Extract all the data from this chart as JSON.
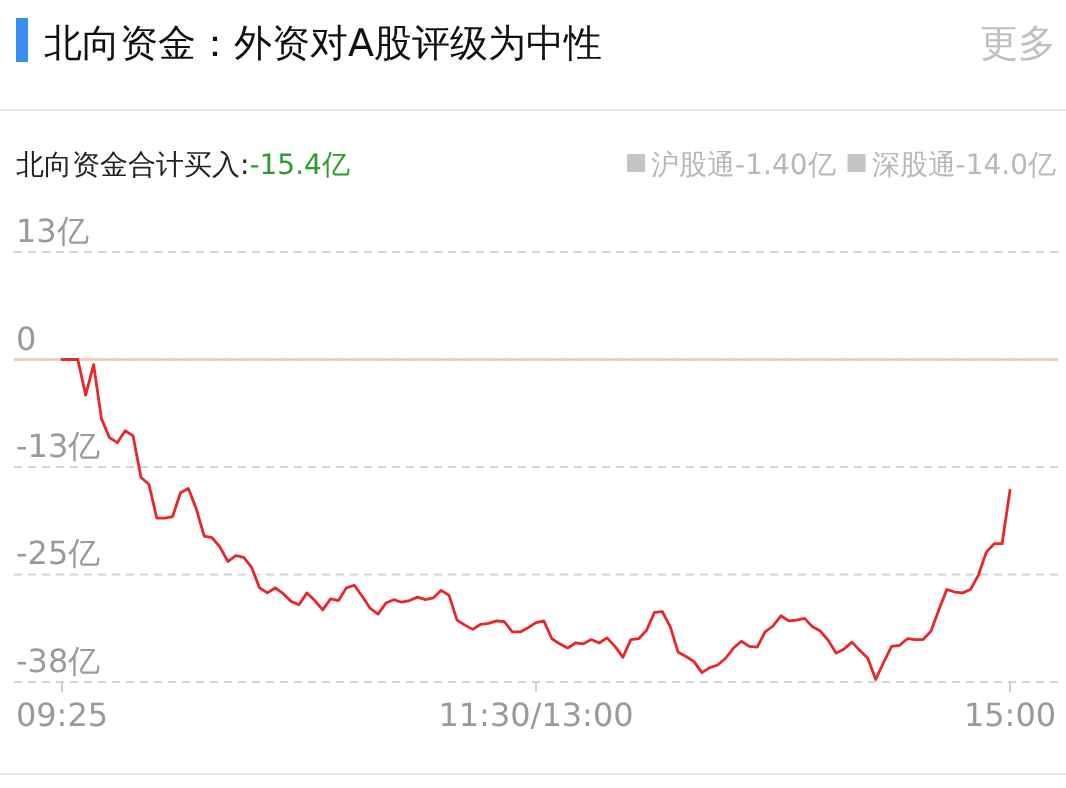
{
  "chart_data": {
    "type": "line",
    "title": "北向资金：外资对A股评级为中性",
    "annotations": [
      "北向资金合计买入:",
      "-15.4亿",
      "沪股通-1.40亿",
      "深股通-14.0亿",
      "更多"
    ],
    "categories": [
      "09:25",
      null,
      null,
      null,
      null,
      null,
      null,
      null,
      null,
      null,
      null,
      null,
      null,
      null,
      null,
      null,
      null,
      null,
      null,
      null,
      null,
      null,
      null,
      null,
      null,
      null,
      null,
      null,
      null,
      null,
      null,
      null,
      null,
      null,
      null,
      null,
      null,
      null,
      null,
      null,
      null,
      null,
      null,
      null,
      null,
      null,
      null,
      null,
      null,
      null,
      null,
      null,
      null,
      null,
      null,
      null,
      null,
      null,
      null,
      null,
      "11:30/13:00",
      null,
      null,
      null,
      null,
      null,
      null,
      null,
      null,
      null,
      null,
      null,
      null,
      null,
      null,
      null,
      null,
      null,
      null,
      null,
      null,
      null,
      null,
      null,
      null,
      null,
      null,
      null,
      null,
      null,
      null,
      null,
      null,
      null,
      null,
      null,
      null,
      null,
      null,
      null,
      null,
      null,
      null,
      null,
      null,
      null,
      null,
      null,
      null,
      null,
      null,
      null,
      null,
      null,
      null,
      null,
      null,
      null,
      null,
      null,
      "15:00"
    ],
    "series": [
      {
        "color": "#e8262b",
        "values": [
          0,
          0,
          0,
          -4.2,
          -0.6,
          -7.0,
          -9.2,
          -9.8,
          -8.4,
          -9.0,
          -13.9,
          -14.7,
          -18.7,
          -18.7,
          -18.5,
          -15.7,
          -15.2,
          -17.6,
          -20.8,
          -21.0,
          -22.1,
          -23.8,
          -23.1,
          -23.3,
          -24.5,
          -26.9,
          -27.5,
          -26.9,
          -27.6,
          -28.5,
          -28.9,
          -27.5,
          -28.4,
          -29.5,
          -28.2,
          -28.4,
          -26.9,
          -26.6,
          -27.9,
          -29.3,
          -30.0,
          -28.7,
          -28.3,
          -28.6,
          -28.4,
          -28.0,
          -28.3,
          -28.1,
          -27.2,
          -27.8,
          -30.7,
          -31.3,
          -31.8,
          -31.2,
          -31.1,
          -30.8,
          -30.9,
          -32.1,
          -32.1,
          -31.6,
          -31.0,
          -30.8,
          -32.9,
          -33.5,
          -34.0,
          -33.4,
          -33.5,
          -33.0,
          -33.4,
          -32.8,
          -33.8,
          -35.1,
          -33.0,
          -32.9,
          -31.9,
          -29.8,
          -29.7,
          -31.5,
          -34.5,
          -35.0,
          -35.6,
          -36.9,
          -36.3,
          -36.0,
          -35.2,
          -34.0,
          -33.2,
          -33.8,
          -33.9,
          -32.1,
          -31.4,
          -30.2,
          -30.8,
          -30.7,
          -30.5,
          -31.5,
          -32.0,
          -33.1,
          -34.6,
          -34.1,
          -33.3,
          -34.3,
          -35.2,
          -37.7,
          -35.7,
          -33.8,
          -33.7,
          -32.9,
          -33.0,
          -33.0,
          -32.0,
          -29.5,
          -27.1,
          -27.4,
          -27.5,
          -27.1,
          -25.4,
          -22.7,
          -21.7,
          -21.7,
          -15.4
        ]
      }
    ],
    "ylim": [
      -38,
      12.67
    ],
    "yticks": [
      {
        "value": 12.67,
        "label": "13亿"
      },
      {
        "value": 0,
        "label": "0"
      },
      {
        "value": -12.67,
        "label": "-13亿"
      },
      {
        "value": -25.33,
        "label": "-25亿"
      },
      {
        "value": -38,
        "label": "-38亿"
      }
    ],
    "ref_lines": [
      {
        "axis": "y",
        "value": 0,
        "color": "#f2c4b4"
      }
    ],
    "grid": "y"
  }
}
